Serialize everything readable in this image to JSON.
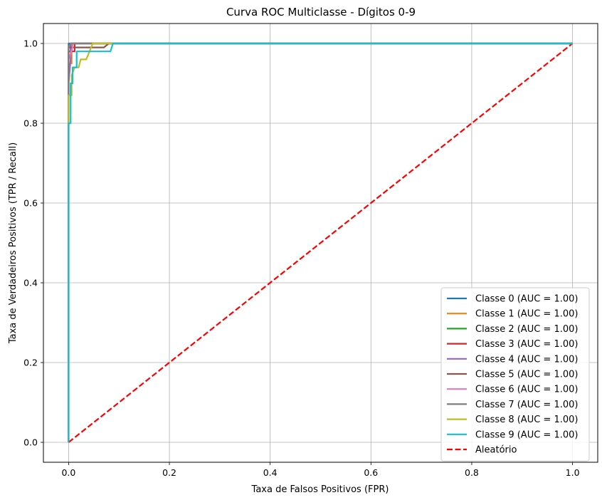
{
  "chart_data": {
    "type": "line",
    "title": "Curva ROC Multiclasse - Dígitos 0-9",
    "xlabel": "Taxa de Falsos Positivos (FPR)",
    "ylabel": "Taxa de Verdadeiros Positivos (TPR / Recall)",
    "xlim": [
      -0.05,
      1.05
    ],
    "ylim": [
      -0.05,
      1.05
    ],
    "xticks": [
      "0.0",
      "0.2",
      "0.4",
      "0.6",
      "0.8",
      "1.0"
    ],
    "yticks": [
      "0.0",
      "0.2",
      "0.4",
      "0.6",
      "0.8",
      "1.0"
    ],
    "grid": true,
    "legend_position": "lower-right",
    "series": [
      {
        "name": "Classe 0 (AUC = 1.00)",
        "color": "#1f77b4",
        "style": "solid",
        "points": [
          [
            0,
            0
          ],
          [
            0,
            1
          ],
          [
            1,
            1
          ]
        ]
      },
      {
        "name": "Classe 1 (AUC = 1.00)",
        "color": "#ff7f0e",
        "style": "solid",
        "points": [
          [
            0,
            0
          ],
          [
            0,
            0.95
          ],
          [
            0.006,
            0.95
          ],
          [
            0.006,
            1
          ],
          [
            1,
            1
          ]
        ]
      },
      {
        "name": "Classe 2 (AUC = 1.00)",
        "color": "#2ca02c",
        "style": "solid",
        "points": [
          [
            0,
            0
          ],
          [
            0,
            0.98
          ],
          [
            0.004,
            0.98
          ],
          [
            0.004,
            1
          ],
          [
            1,
            1
          ]
        ]
      },
      {
        "name": "Classe 3 (AUC = 1.00)",
        "color": "#d62728",
        "style": "solid",
        "points": [
          [
            0,
            0
          ],
          [
            0,
            0.98
          ],
          [
            0.012,
            0.98
          ],
          [
            0.012,
            1
          ],
          [
            1,
            1
          ]
        ]
      },
      {
        "name": "Classe 4 (AUC = 1.00)",
        "color": "#9467bd",
        "style": "solid",
        "points": [
          [
            0,
            0
          ],
          [
            0,
            0.9
          ],
          [
            0.004,
            0.96
          ],
          [
            0.004,
            1
          ],
          [
            0.018,
            1
          ],
          [
            1,
            1
          ]
        ]
      },
      {
        "name": "Classe 5 (AUC = 1.00)",
        "color": "#8c564b",
        "style": "solid",
        "points": [
          [
            0,
            0
          ],
          [
            0,
            0.99
          ],
          [
            0.07,
            0.99
          ],
          [
            0.08,
            1
          ],
          [
            1,
            1
          ]
        ]
      },
      {
        "name": "Classe 6 (AUC = 1.00)",
        "color": "#e377c2",
        "style": "solid",
        "points": [
          [
            0,
            0
          ],
          [
            0,
            0.96
          ],
          [
            0.008,
            0.99
          ],
          [
            0.008,
            1
          ],
          [
            1,
            1
          ]
        ]
      },
      {
        "name": "Classe 7 (AUC = 1.00)",
        "color": "#7f7f7f",
        "style": "solid",
        "points": [
          [
            0,
            0
          ],
          [
            0,
            0.99
          ],
          [
            0.004,
            1
          ],
          [
            1,
            1
          ]
        ]
      },
      {
        "name": "Classe 8 (AUC = 1.00)",
        "color": "#bcbd22",
        "style": "solid",
        "points": [
          [
            0,
            0
          ],
          [
            0,
            0.75
          ],
          [
            0,
            0.87
          ],
          [
            0.006,
            0.87
          ],
          [
            0.006,
            0.92
          ],
          [
            0.012,
            0.94
          ],
          [
            0.02,
            0.94
          ],
          [
            0.024,
            0.96
          ],
          [
            0.035,
            0.96
          ],
          [
            0.048,
            1
          ],
          [
            1,
            1
          ]
        ]
      },
      {
        "name": "Classe 9 (AUC = 1.00)",
        "color": "#17becf",
        "style": "solid",
        "points": [
          [
            0,
            0
          ],
          [
            0,
            0.8
          ],
          [
            0.004,
            0.8
          ],
          [
            0.004,
            0.9
          ],
          [
            0.008,
            0.9
          ],
          [
            0.008,
            0.94
          ],
          [
            0.016,
            0.94
          ],
          [
            0.016,
            0.98
          ],
          [
            0.028,
            0.98
          ],
          [
            0.028,
            0.98
          ],
          [
            0.083,
            0.98
          ],
          [
            0.088,
            1
          ],
          [
            1,
            1
          ]
        ]
      },
      {
        "name": "Aleatório",
        "color": "#ff0000",
        "style": "dashed",
        "points": [
          [
            0,
            0
          ],
          [
            1,
            1
          ]
        ]
      }
    ]
  }
}
